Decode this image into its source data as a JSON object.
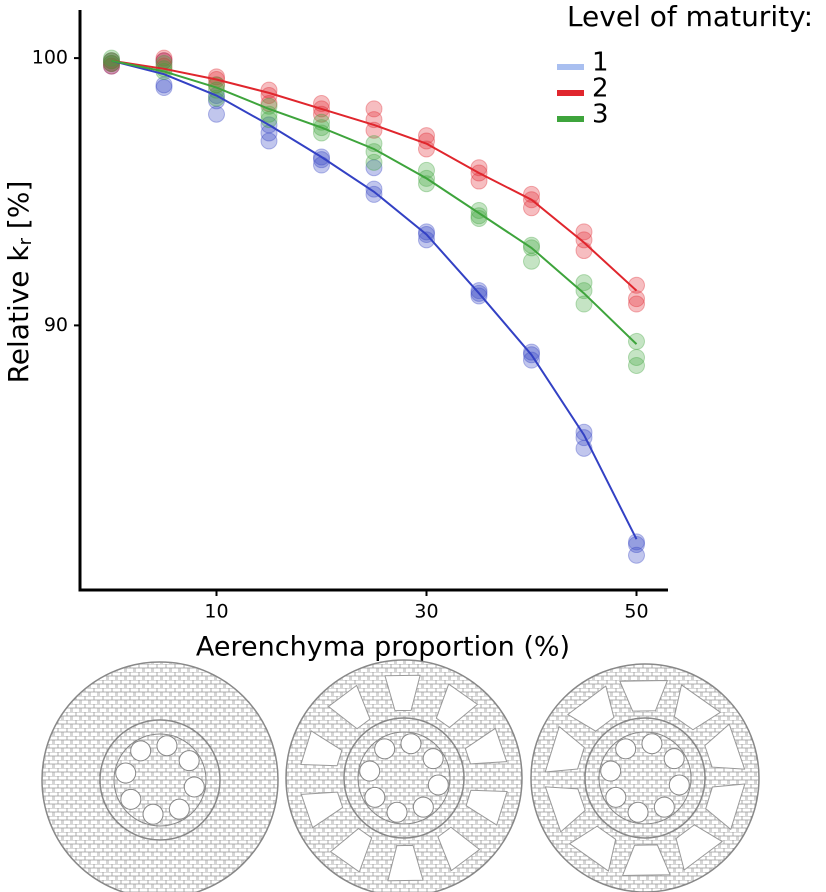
{
  "chart_data": {
    "type": "scatter",
    "xlabel": "Aerenchyma proportion (%)",
    "ylabel": {
      "main": "Relative k",
      "sub": "r",
      "suffix": " [%]"
    },
    "legend_title": "Level of maturity:",
    "legend_position": "top-right",
    "xlim": [
      -3,
      53
    ],
    "xticks": [
      10,
      30,
      50
    ],
    "ylim": [
      80.1,
      101.8
    ],
    "yticks": [
      90,
      100
    ],
    "fit_x": [
      0,
      5,
      10,
      15,
      20,
      25,
      30,
      35,
      40,
      45,
      50
    ],
    "points_x": [
      0,
      0,
      0,
      5,
      5,
      5,
      10,
      10,
      10,
      15,
      15,
      15,
      20,
      20,
      20,
      25,
      25,
      25,
      30,
      30,
      30,
      35,
      35,
      35,
      40,
      40,
      40,
      45,
      45,
      45,
      50,
      50,
      50
    ],
    "series": [
      {
        "name": "1",
        "color": "#3341c4",
        "legend_color": "#a9bff0",
        "fit": [
          99.9,
          99.4,
          98.6,
          97.5,
          96.3,
          95.0,
          93.4,
          91.2,
          88.9,
          85.9,
          82.0
        ],
        "points": [
          99.8,
          99.7,
          99.9,
          99.9,
          99.0,
          98.9,
          98.6,
          98.4,
          97.9,
          97.5,
          97.2,
          96.9,
          96.3,
          96.2,
          96.0,
          95.1,
          94.9,
          95.9,
          93.5,
          93.4,
          93.2,
          91.2,
          91.3,
          91.1,
          89.0,
          88.9,
          88.7,
          86.0,
          85.8,
          85.4,
          81.9,
          81.8,
          81.4
        ]
      },
      {
        "name": "2",
        "color": "#e0262d",
        "legend_color": "#e0262d",
        "fit": [
          99.9,
          99.6,
          99.2,
          98.7,
          98.1,
          97.5,
          96.8,
          95.7,
          94.7,
          93.1,
          91.3
        ],
        "points": [
          99.9,
          99.8,
          99.7,
          100.0,
          99.9,
          99.7,
          99.3,
          99.2,
          99.0,
          98.8,
          98.6,
          98.3,
          98.3,
          98.1,
          97.9,
          98.1,
          97.7,
          97.3,
          97.1,
          96.9,
          96.6,
          95.9,
          95.7,
          95.4,
          94.9,
          94.7,
          94.4,
          93.5,
          93.2,
          92.8,
          91.5,
          91.0,
          90.8
        ]
      },
      {
        "name": "3",
        "color": "#3ea43c",
        "legend_color": "#3ea43c",
        "fit": [
          99.9,
          99.5,
          98.9,
          98.1,
          97.4,
          96.6,
          95.5,
          94.2,
          92.9,
          91.2,
          89.3
        ],
        "points": [
          100.0,
          99.9,
          99.8,
          99.8,
          99.6,
          99.5,
          99.0,
          98.8,
          98.5,
          98.2,
          97.9,
          97.7,
          97.6,
          97.4,
          97.2,
          96.8,
          96.5,
          96.1,
          95.8,
          95.5,
          95.3,
          94.3,
          94.1,
          94.0,
          93.0,
          92.9,
          92.4,
          91.6,
          91.3,
          90.8,
          89.4,
          88.8,
          88.5
        ]
      }
    ]
  }
}
